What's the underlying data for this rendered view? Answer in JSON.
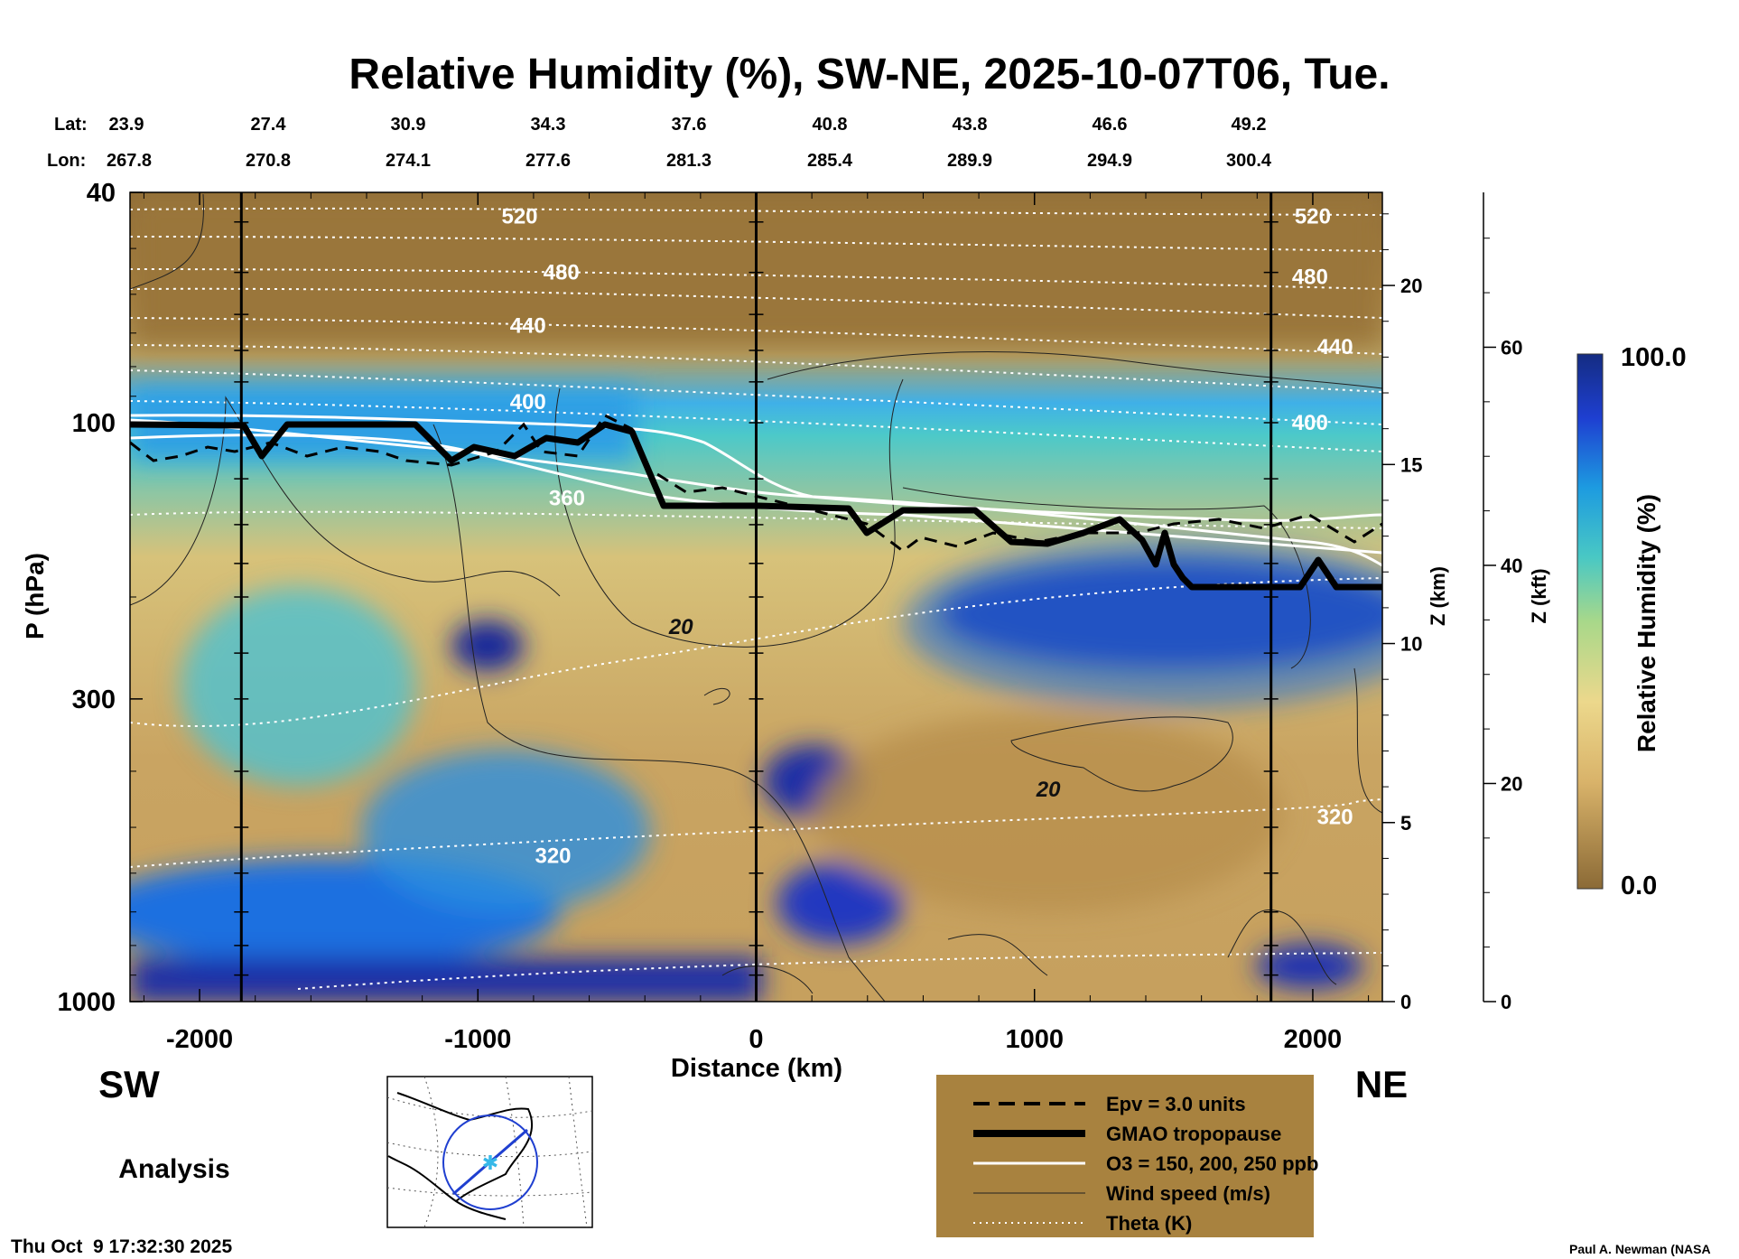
{
  "chart_data": {
    "type": "heatmap",
    "title": "Relative Humidity (%), SW-NE, 2025-10-07T06, Tue.",
    "xlabel": "Distance (km)",
    "ylabel": "P (hPa)",
    "ylabel_right_km": "Z (km)",
    "ylabel_right_kft": "Z (kft)",
    "xlim": [
      -2250,
      2250
    ],
    "ylim_hpa": [
      1000,
      40
    ],
    "x_ticks": [
      -2000,
      -1000,
      0,
      1000,
      2000
    ],
    "x_tick_labels": [
      "-2000",
      "-1000",
      "0",
      "1000",
      "2000"
    ],
    "y_ticks": [
      1000,
      300,
      100,
      40
    ],
    "y_tick_labels": [
      "1000",
      "300",
      "100",
      "40"
    ],
    "z_km_ticks": [
      0,
      5,
      10,
      15,
      20
    ],
    "z_km_tick_labels": [
      "0",
      "5",
      "10",
      "15",
      "20"
    ],
    "z_kft_ticks": [
      0,
      20,
      40,
      60
    ],
    "z_kft_tick_labels": [
      "0",
      "20",
      "40",
      "60"
    ],
    "lat_label": "Lat:",
    "lon_label": "Lon:",
    "lat_values": [
      "23.9",
      "27.4",
      "30.9",
      "34.3",
      "37.6",
      "40.8",
      "43.8",
      "46.6",
      "49.2"
    ],
    "lon_values": [
      "267.8",
      "270.8",
      "274.1",
      "277.6",
      "281.3",
      "285.4",
      "289.9",
      "294.9",
      "300.4"
    ],
    "vertical_lines_km": [
      -1850,
      0,
      1850
    ],
    "theta_labels": [
      {
        "text": "520",
        "x": -850,
        "p": 44
      },
      {
        "text": "480",
        "x": -700,
        "p": 55
      },
      {
        "text": "440",
        "x": -820,
        "p": 68
      },
      {
        "text": "400",
        "x": -820,
        "p": 92
      },
      {
        "text": "360",
        "x": -680,
        "p": 135
      },
      {
        "text": "320",
        "x": -730,
        "p": 560
      },
      {
        "text": "520",
        "x": 2000,
        "p": 44
      },
      {
        "text": "480",
        "x": 1990,
        "p": 56
      },
      {
        "text": "440",
        "x": 2080,
        "p": 74
      },
      {
        "text": "400",
        "x": 1990,
        "p": 100
      },
      {
        "text": "320",
        "x": 2080,
        "p": 480
      }
    ],
    "wind_labels": [
      {
        "text": "20",
        "x": -270,
        "p": 225
      },
      {
        "text": "20",
        "x": 1050,
        "p": 430
      }
    ],
    "colorbar": {
      "label": "Relative Humidity (%)",
      "min": 0.0,
      "max": 100.0,
      "min_label": "0.0",
      "max_label": "100.0"
    },
    "region_left": "SW",
    "region_right": "NE",
    "legend": [
      {
        "style": "dashed",
        "label": "Epv = 3.0 units"
      },
      {
        "style": "thick",
        "label": "GMAO tropopause"
      },
      {
        "style": "white",
        "label": "O3 = 150, 200, 250 ppb"
      },
      {
        "style": "thin",
        "label": "Wind speed (m/s)"
      },
      {
        "style": "dotted",
        "label": "Theta (K)"
      }
    ]
  },
  "footer": {
    "analysis_label": "Analysis",
    "timestamp": "Thu Oct  9 17:32:30 2025",
    "credit": "Paul A. Newman (NASA"
  },
  "colors": {
    "dry": "#8a6a38",
    "wet": "#14288c",
    "legend_bg": "#a8823f"
  }
}
